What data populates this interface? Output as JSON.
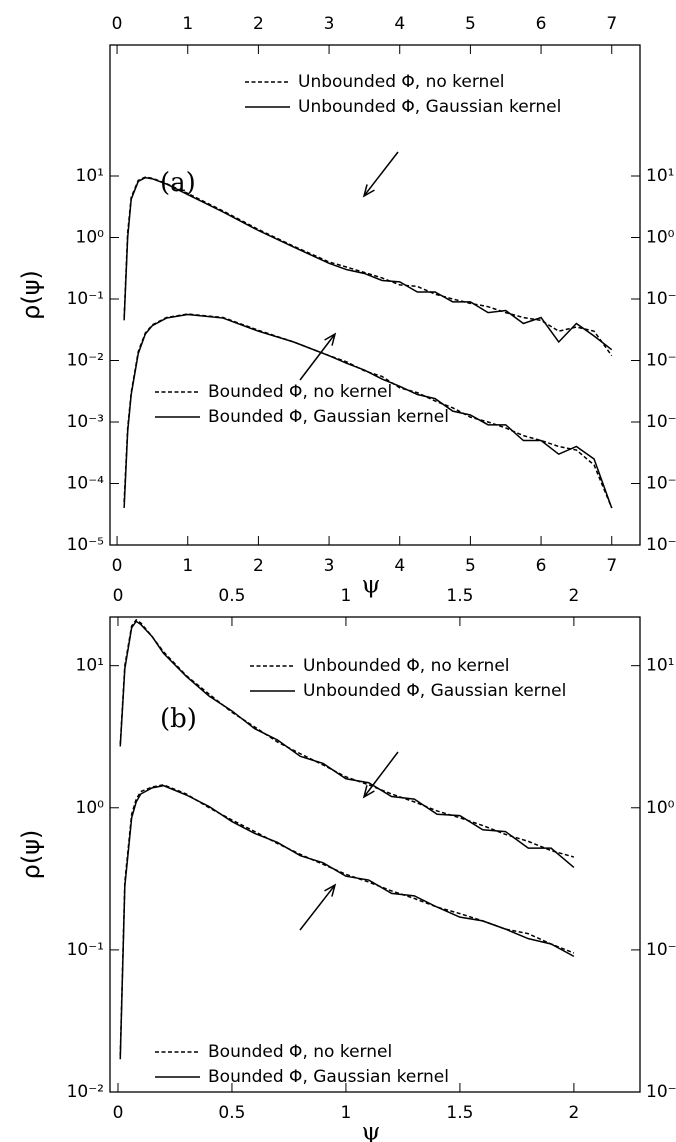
{
  "chart_data": [
    {
      "type": "line",
      "annotation": "(a)",
      "x_label": "ψ",
      "y_label": "ρ(ψ)",
      "yscale": "log",
      "xlim": [
        -0.1,
        7.4
      ],
      "xticks": [
        0,
        1,
        2,
        3,
        4,
        5,
        6,
        7
      ],
      "ylim": [
        1e-05,
        1350
      ],
      "yticks": [
        {
          "value": 1e-05,
          "label": "10⁻⁵"
        },
        {
          "value": 0.0001,
          "label": "10⁻⁴"
        },
        {
          "value": 0.001,
          "label": "10⁻³"
        },
        {
          "value": 0.01,
          "label": "10⁻²"
        },
        {
          "value": 0.1,
          "label": "10⁻¹"
        },
        {
          "value": 1,
          "label": "10⁰"
        },
        {
          "value": 10,
          "label": "10¹"
        }
      ],
      "x": [
        0.1,
        0.15,
        0.2,
        0.3,
        0.4,
        0.5,
        0.7,
        1,
        1.5,
        2,
        2.5,
        3,
        3.25,
        3.5,
        3.75,
        4,
        4.25,
        4.5,
        4.75,
        5,
        5.25,
        5.5,
        5.75,
        6,
        6.25,
        6.5,
        6.75,
        7
      ],
      "series": [
        {
          "name": "Unbounded Φ, no kernel",
          "color": "#000000",
          "dashed": true,
          "values": [
            0.05,
            1.2,
            4.5,
            8.5,
            9.6,
            9.2,
            7.5,
            5.2,
            2.7,
            1.35,
            0.72,
            0.4,
            0.33,
            0.27,
            0.22,
            0.17,
            0.16,
            0.12,
            0.1,
            0.085,
            0.075,
            0.06,
            0.05,
            0.045,
            0.03,
            0.035,
            0.03,
            0.012
          ]
        },
        {
          "name": "Unbounded Φ, Gaussian kernel",
          "color": "#000000",
          "dashed": false,
          "values": [
            0.045,
            1.0,
            4.2,
            8.2,
            9.4,
            9.0,
            7.4,
            5.0,
            2.6,
            1.3,
            0.7,
            0.38,
            0.3,
            0.26,
            0.2,
            0.19,
            0.13,
            0.13,
            0.09,
            0.09,
            0.06,
            0.065,
            0.04,
            0.05,
            0.02,
            0.04,
            0.025,
            0.015
          ]
        },
        {
          "name": "Bounded Φ, no kernel",
          "color": "#000000",
          "dashed": true,
          "values": [
            5e-05,
            0.0008,
            0.003,
            0.014,
            0.028,
            0.038,
            0.05,
            0.057,
            0.05,
            0.031,
            0.02,
            0.012,
            0.0095,
            0.0068,
            0.0055,
            0.0036,
            0.003,
            0.0022,
            0.0017,
            0.0012,
            0.001,
            0.0008,
            0.0006,
            0.0005,
            0.0004,
            0.00035,
            0.0002,
            4e-05
          ]
        },
        {
          "name": "Bounded Φ, Gaussian kernel",
          "color": "#000000",
          "dashed": false,
          "values": [
            4e-05,
            0.0007,
            0.0028,
            0.013,
            0.027,
            0.037,
            0.049,
            0.056,
            0.049,
            0.03,
            0.02,
            0.012,
            0.009,
            0.007,
            0.005,
            0.0038,
            0.0028,
            0.0024,
            0.0015,
            0.0013,
            0.0009,
            0.0009,
            0.0005,
            0.0005,
            0.0003,
            0.0004,
            0.00025,
            4e-05
          ]
        }
      ]
    },
    {
      "type": "line",
      "annotation": "(b)",
      "x_label": "ψ",
      "y_label": "ρ(ψ)",
      "yscale": "log",
      "xlim": [
        -0.035,
        2.29
      ],
      "xticks": [
        0,
        0.5,
        1,
        1.5,
        2
      ],
      "ylim": [
        0.01,
        22
      ],
      "yticks": [
        {
          "value": 0.01,
          "label": "10⁻²"
        },
        {
          "value": 0.1,
          "label": "10⁻¹"
        },
        {
          "value": 1,
          "label": "10⁰"
        },
        {
          "value": 10,
          "label": "10¹"
        }
      ],
      "x": [
        0.01,
        0.03,
        0.06,
        0.08,
        0.1,
        0.15,
        0.2,
        0.3,
        0.4,
        0.5,
        0.6,
        0.7,
        0.8,
        0.9,
        1,
        1.1,
        1.2,
        1.3,
        1.4,
        1.5,
        1.6,
        1.7,
        1.8,
        1.9,
        2
      ],
      "series": [
        {
          "name": "Unbounded Φ, no kernel",
          "color": "#000000",
          "dashed": true,
          "values": [
            2.8,
            10,
            19,
            21,
            20,
            16,
            12.5,
            8.5,
            6.3,
            4.7,
            3.7,
            2.9,
            2.4,
            2.0,
            1.65,
            1.45,
            1.25,
            1.1,
            0.95,
            0.85,
            0.75,
            0.65,
            0.58,
            0.5,
            0.45
          ]
        },
        {
          "name": "Unbounded Φ, Gaussian kernel",
          "color": "#000000",
          "dashed": false,
          "values": [
            2.7,
            9.5,
            18.5,
            20.5,
            19.5,
            16,
            12.2,
            8.4,
            6.1,
            4.8,
            3.6,
            3.0,
            2.3,
            2.05,
            1.6,
            1.5,
            1.2,
            1.15,
            0.9,
            0.88,
            0.7,
            0.68,
            0.52,
            0.52,
            0.38
          ]
        },
        {
          "name": "Bounded Φ, no kernel",
          "color": "#000000",
          "dashed": true,
          "values": [
            0.018,
            0.3,
            0.9,
            1.15,
            1.3,
            1.4,
            1.45,
            1.25,
            1.0,
            0.82,
            0.68,
            0.56,
            0.47,
            0.4,
            0.34,
            0.3,
            0.26,
            0.23,
            0.2,
            0.18,
            0.16,
            0.14,
            0.13,
            0.11,
            0.095
          ]
        },
        {
          "name": "Bounded Φ, Gaussian kernel",
          "color": "#000000",
          "dashed": false,
          "values": [
            0.017,
            0.28,
            0.85,
            1.1,
            1.25,
            1.38,
            1.43,
            1.23,
            1.02,
            0.8,
            0.66,
            0.57,
            0.46,
            0.41,
            0.33,
            0.31,
            0.25,
            0.24,
            0.2,
            0.17,
            0.16,
            0.14,
            0.12,
            0.11,
            0.09
          ]
        }
      ]
    }
  ]
}
